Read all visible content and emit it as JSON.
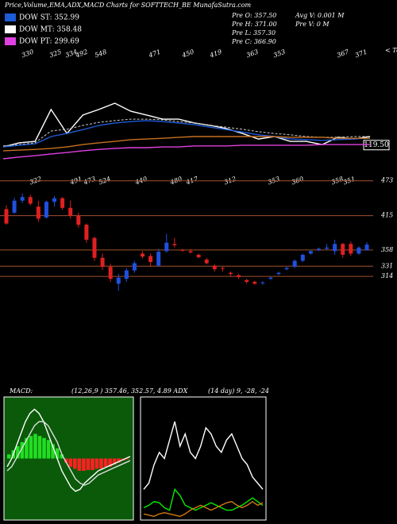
{
  "header": {
    "title": "Price,Volume,EMA,ADX,MACD Charts for SOFTTECH_BE MunafaSutra.com",
    "legend": [
      {
        "label": "DOW ST: 352.99",
        "color": "#1e5bd6"
      },
      {
        "label": "DOW MT: 358.48",
        "color": "#ffffff"
      },
      {
        "label": "DOW PT: 299.69",
        "color": "#e040e0"
      }
    ],
    "stats": [
      "Pre  O: 357.50",
      "Pre  H: 371.00",
      "Pre  L: 357.30",
      "Pre  C: 366.90",
      "Avg V: 0.001 M",
      "Pre  V: 0  M"
    ]
  },
  "indicators": {
    "macd_label": "MACD:",
    "macd_text": "(12,26,9 ) 357.46, 352.57, 4.89 ADX",
    "adx_text": "(14  day) 9, -28, -24"
  },
  "chart_data": [
    {
      "type": "line",
      "note": "< Tops",
      "ylim": [
        80,
        400
      ],
      "yticks": [
        {
          "value": 119.5,
          "label": "119.50"
        }
      ],
      "top_labels": [
        "330",
        "325",
        "334",
        "492",
        "548",
        "471",
        "450",
        "419",
        "363",
        "353",
        "367",
        "371"
      ],
      "series": [
        {
          "color": "#ffffff",
          "values": [
            114,
            126,
            130,
            222,
            153,
            206,
            222,
            240,
            217,
            206,
            194,
            194,
            183,
            176,
            167,
            153,
            137,
            144,
            130,
            130,
            121,
            142,
            137,
            144
          ]
        },
        {
          "color": "#cccccc",
          "dashed": true,
          "values": [
            117,
            121,
            126,
            160,
            165,
            176,
            185,
            190,
            194,
            194,
            192,
            187,
            183,
            176,
            171,
            165,
            158,
            153,
            149,
            144,
            142,
            142,
            144,
            144
          ]
        },
        {
          "color": "#1e5bd6",
          "values": [
            114,
            119,
            123,
            144,
            153,
            164,
            176,
            183,
            187,
            190,
            187,
            183,
            178,
            171,
            164,
            157,
            149,
            144,
            137,
            135,
            133,
            135,
            137,
            140
          ]
        },
        {
          "color": "#c87020",
          "values": [
            103,
            105,
            107,
            110,
            114,
            121,
            126,
            130,
            135,
            137,
            139,
            142,
            144,
            144,
            144,
            144,
            144,
            144,
            142,
            142,
            142,
            139,
            139,
            139
          ]
        },
        {
          "color": "#e040e0",
          "values": [
            80,
            85,
            89,
            94,
            98,
            103,
            107,
            110,
            112,
            112,
            114,
            114,
            117,
            117,
            117,
            119,
            119,
            119,
            119,
            119,
            121,
            121,
            121,
            121
          ]
        }
      ]
    },
    {
      "type": "candlestick",
      "ylim": [
        272,
        503
      ],
      "yticks": [
        473,
        415,
        358,
        331,
        314
      ],
      "top_labels": [
        "322",
        "491",
        "473",
        "524",
        "440",
        "480",
        "417",
        "312",
        "353",
        "360",
        "358",
        "351"
      ],
      "up_color": "#2050e0",
      "down_color": "#e02020",
      "grid_color": "#a0522d",
      "open": [
        426,
        420,
        440,
        446,
        430,
        412,
        438,
        444,
        428,
        415,
        400,
        378,
        345,
        330,
        302,
        310,
        324,
        352,
        348,
        332,
        356,
        368,
        358,
        356,
        350,
        342,
        332,
        328,
        320,
        316,
        308,
        305,
        303,
        310,
        318,
        326,
        330,
        340,
        352,
        358,
        360,
        356,
        368,
        368,
        352,
        357.5
      ],
      "high": [
        432,
        445,
        452,
        450,
        440,
        440,
        448,
        446,
        440,
        420,
        402,
        380,
        352,
        335,
        318,
        328,
        340,
        356,
        352,
        360,
        385,
        378,
        360,
        360,
        352,
        345,
        334,
        330,
        322,
        318,
        310,
        307,
        306,
        314,
        322,
        330,
        342,
        352,
        358,
        362,
        368,
        375,
        370,
        372,
        364,
        371
      ],
      "low": [
        400,
        418,
        436,
        432,
        405,
        410,
        430,
        425,
        410,
        395,
        370,
        340,
        325,
        305,
        290,
        305,
        320,
        344,
        330,
        330,
        354,
        362,
        355,
        352,
        344,
        334,
        322,
        322,
        314,
        310,
        302,
        300,
        300,
        308,
        316,
        324,
        328,
        338,
        350,
        356,
        358,
        350,
        345,
        348,
        350,
        357.3
      ],
      "close": [
        402,
        440,
        446,
        435,
        410,
        438,
        444,
        428,
        415,
        400,
        375,
        345,
        330,
        310,
        312,
        324,
        336,
        347,
        338,
        355,
        370,
        366,
        357,
        354,
        346,
        336,
        326,
        327,
        318,
        313,
        305,
        302,
        304,
        312,
        320,
        328,
        340,
        350,
        356,
        360,
        362,
        368,
        350,
        352,
        362,
        366.9
      ]
    },
    {
      "type": "macd",
      "ylim": [
        -1.5,
        1.5
      ],
      "background": "#0a5a0a",
      "pos_color": "#22dd22",
      "neg_color": "#ff2020",
      "values": [
        0.1,
        0.2,
        0.3,
        0.4,
        0.5,
        0.55,
        0.6,
        0.55,
        0.5,
        0.45,
        0.35,
        0.25,
        0.1,
        -0.1,
        -0.2,
        -0.25,
        -0.3,
        -0.3,
        -0.28,
        -0.28,
        -0.25,
        -0.25,
        -0.2,
        -0.2,
        -0.15,
        -0.1,
        -0.05,
        -0.02
      ],
      "series": [
        {
          "color": "#ffffff",
          "values": [
            -0.2,
            0,
            0.3,
            0.6,
            0.9,
            1.1,
            1.2,
            1.1,
            0.9,
            0.6,
            0.3,
            0,
            -0.3,
            -0.5,
            -0.7,
            -0.8,
            -0.75,
            -0.6,
            -0.5,
            -0.4,
            -0.3,
            -0.25,
            -0.2,
            -0.15,
            -0.1,
            -0.05,
            0,
            0.05
          ]
        },
        {
          "color": "#dddddd",
          "values": [
            -0.3,
            -0.2,
            0,
            0.2,
            0.4,
            0.6,
            0.8,
            0.9,
            0.9,
            0.8,
            0.6,
            0.4,
            0.1,
            -0.1,
            -0.3,
            -0.5,
            -0.6,
            -0.65,
            -0.6,
            -0.5,
            -0.4,
            -0.35,
            -0.3,
            -0.25,
            -0.2,
            -0.15,
            -0.1,
            -0.05
          ]
        }
      ]
    },
    {
      "type": "line",
      "ylim": [
        0,
        100
      ],
      "series": [
        {
          "color": "#ffffff",
          "values": [
            25,
            30,
            45,
            55,
            50,
            65,
            80,
            60,
            70,
            55,
            50,
            60,
            75,
            70,
            60,
            55,
            65,
            70,
            60,
            50,
            45,
            35,
            30,
            25
          ]
        },
        {
          "color": "#00ee00",
          "values": [
            10,
            12,
            15,
            14,
            10,
            8,
            25,
            20,
            12,
            10,
            8,
            10,
            12,
            14,
            12,
            10,
            8,
            8,
            10,
            12,
            15,
            18,
            15,
            12
          ]
        },
        {
          "color": "#d07a10",
          "values": [
            5,
            4,
            3,
            5,
            6,
            5,
            4,
            3,
            5,
            8,
            10,
            12,
            10,
            8,
            10,
            12,
            14,
            15,
            12,
            10,
            12,
            15,
            12,
            14
          ]
        }
      ]
    }
  ]
}
